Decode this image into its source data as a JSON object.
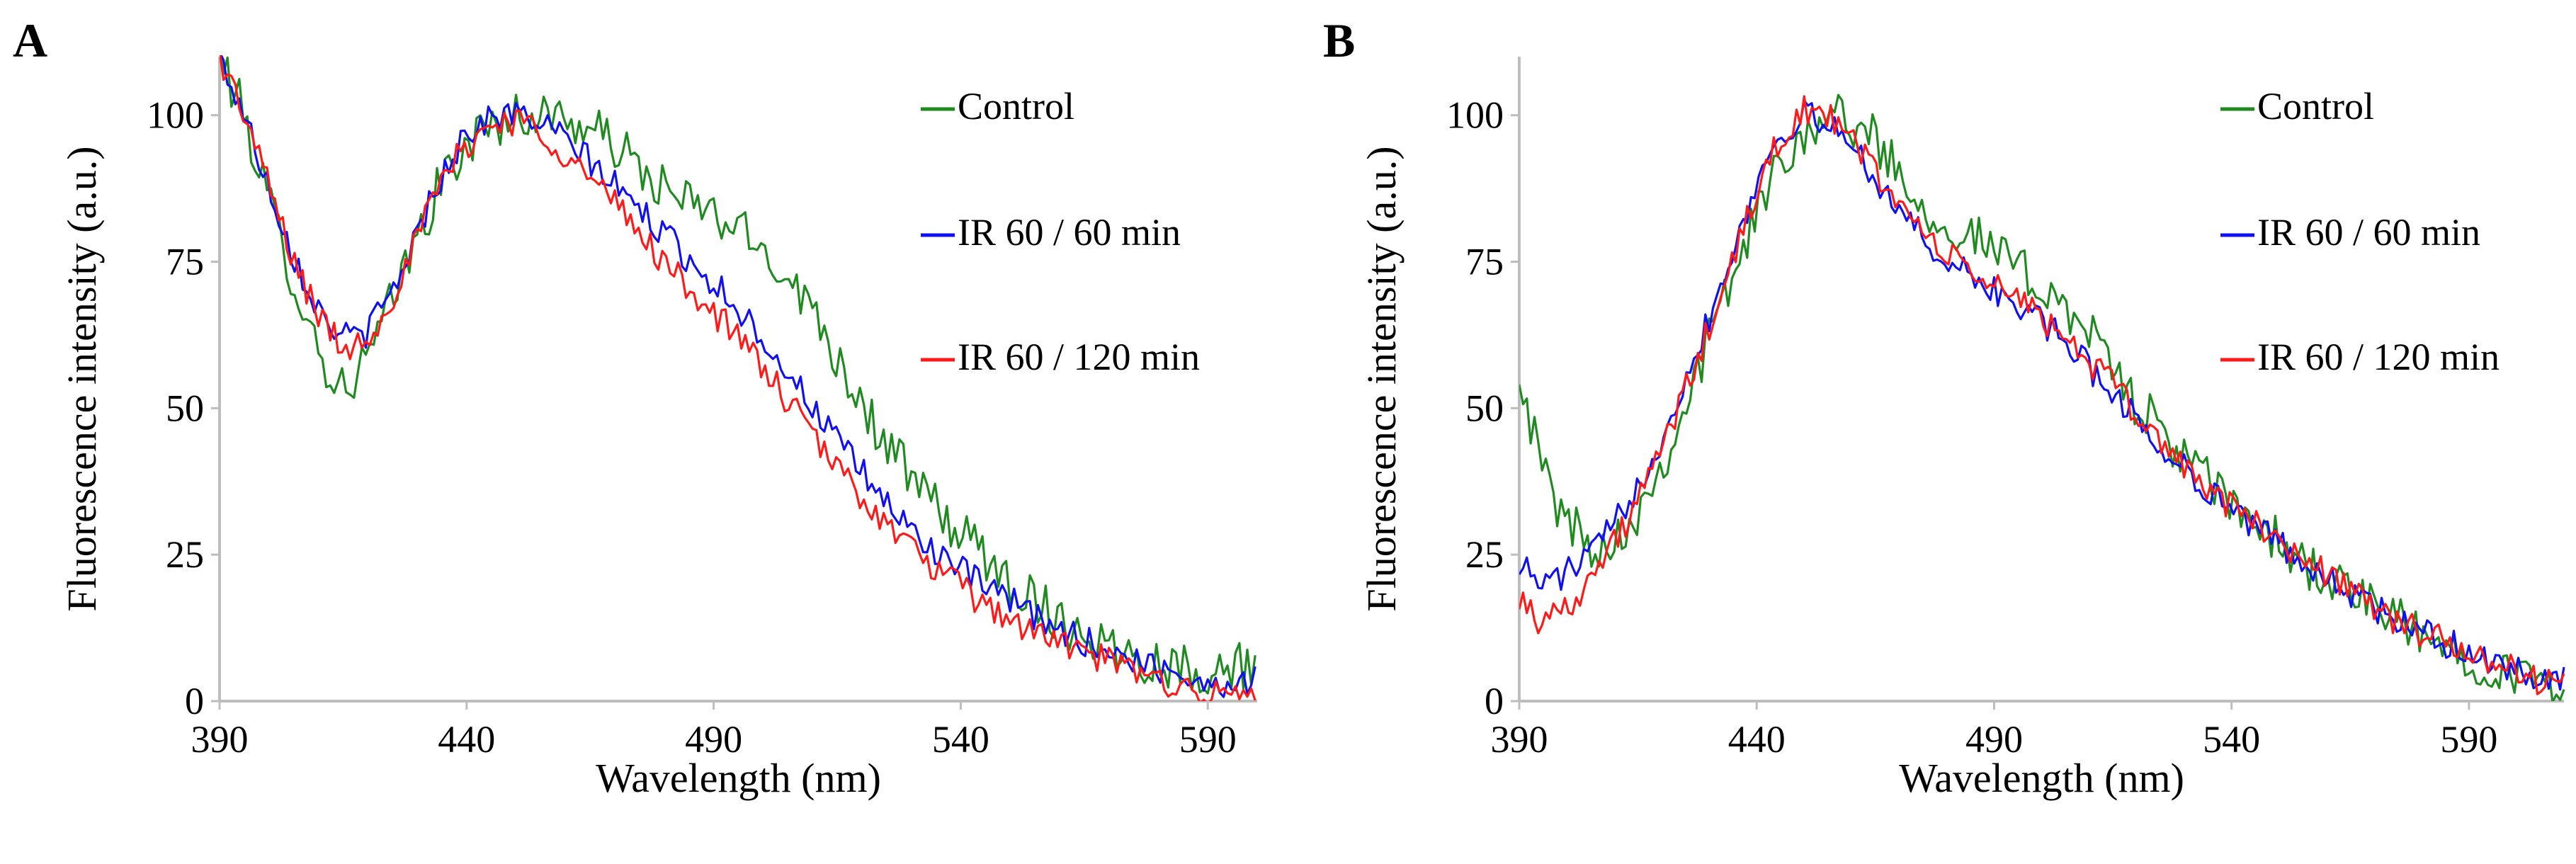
{
  "chart_data": [
    {
      "panel": "A",
      "type": "line",
      "title": "",
      "xlabel": "Wavelength (nm)",
      "ylabel": "Fluorescence intensity (a.u.)",
      "xlim": [
        390,
        600
      ],
      "ylim": [
        0,
        110
      ],
      "xticks": [
        390,
        440,
        490,
        540,
        590
      ],
      "yticks": [
        0,
        25,
        50,
        75,
        100
      ],
      "legend_position": "right",
      "series": [
        {
          "name": "Control",
          "color": "#1f8a1f",
          "points": [
            [
              390,
              110
            ],
            [
              395,
              100
            ],
            [
              400,
              85
            ],
            [
              405,
              72
            ],
            [
              410,
              60
            ],
            [
              414,
              53
            ],
            [
              418,
              56
            ],
            [
              422,
              62
            ],
            [
              428,
              75
            ],
            [
              434,
              87
            ],
            [
              440,
              95
            ],
            [
              446,
              99
            ],
            [
              452,
              100
            ],
            [
              458,
              100
            ],
            [
              464,
              98
            ],
            [
              470,
              95
            ],
            [
              476,
              90
            ],
            [
              482,
              86
            ],
            [
              488,
              84
            ],
            [
              494,
              81
            ],
            [
              500,
              77
            ],
            [
              506,
              72
            ],
            [
              512,
              64
            ],
            [
              518,
              54
            ],
            [
              524,
              45
            ],
            [
              530,
              38
            ],
            [
              536,
              32
            ],
            [
              542,
              27
            ],
            [
              548,
              22
            ],
            [
              554,
              18
            ],
            [
              560,
              14
            ],
            [
              566,
              11
            ],
            [
              572,
              9
            ],
            [
              578,
              7
            ],
            [
              584,
              6
            ],
            [
              590,
              5
            ],
            [
              596,
              6
            ],
            [
              600,
              7
            ]
          ]
        },
        {
          "name": "IR 60 / 60 min",
          "color": "#1010f0",
          "points": [
            [
              390,
              110
            ],
            [
              395,
              100
            ],
            [
              400,
              88
            ],
            [
              405,
              76
            ],
            [
              410,
              67
            ],
            [
              415,
              62
            ],
            [
              420,
              63
            ],
            [
              425,
              70
            ],
            [
              430,
              80
            ],
            [
              435,
              90
            ],
            [
              440,
              97
            ],
            [
              446,
              100
            ],
            [
              452,
              100
            ],
            [
              458,
              97
            ],
            [
              464,
              93
            ],
            [
              470,
              88
            ],
            [
              476,
              83
            ],
            [
              482,
              78
            ],
            [
              488,
              73
            ],
            [
              494,
              68
            ],
            [
              500,
              62
            ],
            [
              506,
              55
            ],
            [
              512,
              48
            ],
            [
              518,
              41
            ],
            [
              524,
              35
            ],
            [
              530,
              29
            ],
            [
              536,
              25
            ],
            [
              542,
              21
            ],
            [
              548,
              18
            ],
            [
              554,
              15
            ],
            [
              560,
              12
            ],
            [
              566,
              10
            ],
            [
              572,
              8
            ],
            [
              578,
              6
            ],
            [
              584,
              5
            ],
            [
              590,
              3
            ],
            [
              596,
              3
            ],
            [
              600,
              4
            ]
          ]
        },
        {
          "name": "IR 60 / 120 min",
          "color": "#ff1a1a",
          "points": [
            [
              390,
              110
            ],
            [
              395,
              100
            ],
            [
              400,
              88
            ],
            [
              405,
              75
            ],
            [
              410,
              66
            ],
            [
              415,
              60
            ],
            [
              420,
              62
            ],
            [
              425,
              69
            ],
            [
              430,
              79
            ],
            [
              435,
              89
            ],
            [
              440,
              95
            ],
            [
              446,
              99
            ],
            [
              452,
              99
            ],
            [
              458,
              95
            ],
            [
              464,
              90
            ],
            [
              470,
              85
            ],
            [
              476,
              79
            ],
            [
              482,
              73
            ],
            [
              488,
              68
            ],
            [
              494,
              63
            ],
            [
              500,
              57
            ],
            [
              506,
              50
            ],
            [
              512,
              43
            ],
            [
              518,
              37
            ],
            [
              524,
              31
            ],
            [
              530,
              26
            ],
            [
              536,
              22
            ],
            [
              542,
              18
            ],
            [
              548,
              15
            ],
            [
              554,
              12
            ],
            [
              560,
              10
            ],
            [
              566,
              8
            ],
            [
              572,
              6
            ],
            [
              578,
              4
            ],
            [
              584,
              3
            ],
            [
              590,
              1
            ],
            [
              596,
              1
            ],
            [
              600,
              2
            ]
          ]
        }
      ]
    },
    {
      "panel": "B",
      "type": "line",
      "title": "",
      "xlabel": "Wavelength (nm)",
      "ylabel": "Fluorescence intensity (a.u.)",
      "xlim": [
        390,
        610
      ],
      "ylim": [
        0,
        110
      ],
      "xticks": [
        390,
        440,
        490,
        540,
        590
      ],
      "yticks": [
        0,
        25,
        50,
        75,
        100
      ],
      "legend_position": "right",
      "series": [
        {
          "name": "Control",
          "color": "#1f8a1f",
          "points": [
            [
              390,
              58
            ],
            [
              393,
              45
            ],
            [
              397,
              35
            ],
            [
              401,
              30
            ],
            [
              405,
              27
            ],
            [
              409,
              27
            ],
            [
              413,
              30
            ],
            [
              418,
              37
            ],
            [
              424,
              48
            ],
            [
              430,
              62
            ],
            [
              436,
              75
            ],
            [
              442,
              87
            ],
            [
              448,
              96
            ],
            [
              454,
              100
            ],
            [
              460,
              99
            ],
            [
              466,
              95
            ],
            [
              472,
              88
            ],
            [
              478,
              82
            ],
            [
              484,
              80
            ],
            [
              490,
              77
            ],
            [
              496,
              73
            ],
            [
              502,
              70
            ],
            [
              508,
              65
            ],
            [
              514,
              58
            ],
            [
              520,
              51
            ],
            [
              526,
              45
            ],
            [
              532,
              40
            ],
            [
              538,
              35
            ],
            [
              544,
              31
            ],
            [
              550,
              27
            ],
            [
              556,
              23
            ],
            [
              562,
              20
            ],
            [
              568,
              17
            ],
            [
              574,
              14
            ],
            [
              580,
              11
            ],
            [
              586,
              9
            ],
            [
              592,
              7
            ],
            [
              598,
              5
            ],
            [
              604,
              3
            ],
            [
              610,
              4
            ]
          ]
        },
        {
          "name": "IR 60 / 60 min",
          "color": "#1010f0",
          "points": [
            [
              390,
              24
            ],
            [
              394,
              20
            ],
            [
              398,
              21
            ],
            [
              402,
              23
            ],
            [
              406,
              26
            ],
            [
              410,
              30
            ],
            [
              415,
              37
            ],
            [
              420,
              45
            ],
            [
              426,
              57
            ],
            [
              432,
              70
            ],
            [
              438,
              84
            ],
            [
              444,
              96
            ],
            [
              450,
              100
            ],
            [
              456,
              98
            ],
            [
              462,
              93
            ],
            [
              468,
              86
            ],
            [
              474,
              80
            ],
            [
              480,
              75
            ],
            [
              486,
              72
            ],
            [
              492,
              69
            ],
            [
              498,
              66
            ],
            [
              504,
              62
            ],
            [
              510,
              57
            ],
            [
              516,
              52
            ],
            [
              522,
              46
            ],
            [
              528,
              41
            ],
            [
              534,
              37
            ],
            [
              540,
              33
            ],
            [
              546,
              29
            ],
            [
              552,
              26
            ],
            [
              558,
              22
            ],
            [
              564,
              19
            ],
            [
              570,
              16
            ],
            [
              576,
              13
            ],
            [
              582,
              11
            ],
            [
              588,
              9
            ],
            [
              594,
              7
            ],
            [
              600,
              5
            ],
            [
              606,
              3
            ],
            [
              610,
              4
            ]
          ]
        },
        {
          "name": "IR 60 / 120 min",
          "color": "#ff1a1a",
          "points": [
            [
              390,
              18
            ],
            [
              394,
              14
            ],
            [
              398,
              15
            ],
            [
              402,
              18
            ],
            [
              406,
              22
            ],
            [
              410,
              27
            ],
            [
              415,
              34
            ],
            [
              420,
              43
            ],
            [
              426,
              55
            ],
            [
              432,
              68
            ],
            [
              438,
              82
            ],
            [
              444,
              95
            ],
            [
              450,
              101
            ],
            [
              456,
              99
            ],
            [
              462,
              94
            ],
            [
              468,
              87
            ],
            [
              474,
              81
            ],
            [
              480,
              76
            ],
            [
              486,
              73
            ],
            [
              492,
              70
            ],
            [
              498,
              67
            ],
            [
              504,
              63
            ],
            [
              510,
              58
            ],
            [
              516,
              53
            ],
            [
              522,
              47
            ],
            [
              528,
              42
            ],
            [
              534,
              37
            ],
            [
              540,
              33
            ],
            [
              546,
              30
            ],
            [
              552,
              26
            ],
            [
              558,
              23
            ],
            [
              564,
              20
            ],
            [
              570,
              16
            ],
            [
              576,
              13
            ],
            [
              582,
              11
            ],
            [
              588,
              9
            ],
            [
              594,
              7
            ],
            [
              600,
              5
            ],
            [
              606,
              3
            ],
            [
              610,
              5
            ]
          ]
        }
      ]
    }
  ]
}
